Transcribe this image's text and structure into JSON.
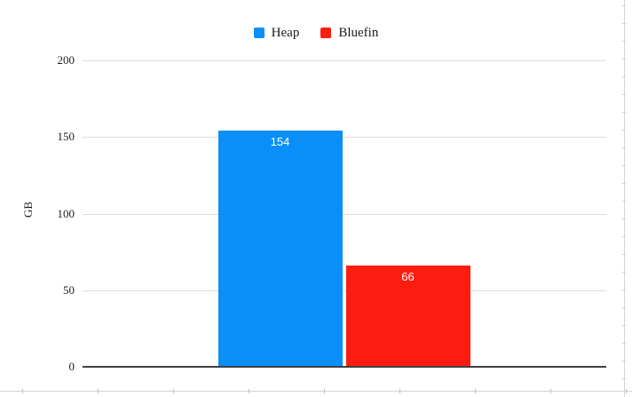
{
  "chart_data": {
    "type": "bar",
    "title": "",
    "categories": [
      ""
    ],
    "series": [
      {
        "name": "Heap",
        "values": [
          154
        ],
        "data_label": "154",
        "color": "#0a8ff9"
      },
      {
        "name": "Bluefin",
        "values": [
          66
        ],
        "data_label": "66",
        "color": "#fd1d10"
      }
    ],
    "xlabel": "",
    "ylabel": "GB",
    "ylim": [
      0,
      200
    ],
    "yticks": [
      0,
      50,
      100,
      150,
      200
    ],
    "ytick_labels": [
      "0",
      "50",
      "100",
      "150",
      "200"
    ],
    "grid": true,
    "legend_position": "top-center",
    "value_label_color": "#ffffff"
  },
  "colors": {
    "heap_blue": "#0a8ff9",
    "bluefin_red": "#fd1d10",
    "gridline": "#dcdcdc",
    "axis_line": "#404040",
    "sheet_edge": "#d4d4d4"
  }
}
